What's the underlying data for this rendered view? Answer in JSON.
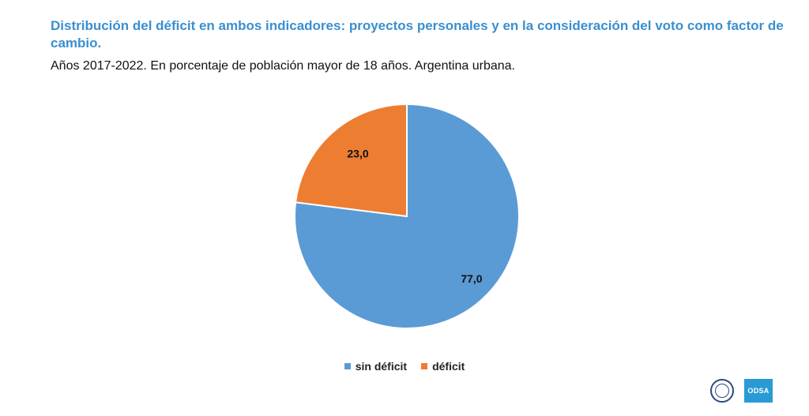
{
  "header": {
    "title": "Distribución del déficit en ambos indicadores: proyectos personales y en la consideración del voto como factor de cambio.",
    "subtitle": "Años 2017-2022. En porcentaje de población mayor de 18 años. Argentina urbana."
  },
  "footer": {
    "logo_text": "ODSA"
  },
  "chart_data": {
    "type": "pie",
    "title": "Distribución del déficit en ambos indicadores: proyectos personales y en la consideración del voto como factor de cambio.",
    "subtitle": "Años 2017-2022. En porcentaje de población mayor de 18 años. Argentina urbana.",
    "slices": [
      {
        "name": "sin déficit",
        "value": 77.0,
        "label": "77,0",
        "color": "#5b9bd5"
      },
      {
        "name": "déficit",
        "value": 23.0,
        "label": "23,0",
        "color": "#ed7d31"
      }
    ],
    "start": "12 o'clock",
    "direction": "clockwise",
    "legend_position": "bottom"
  }
}
